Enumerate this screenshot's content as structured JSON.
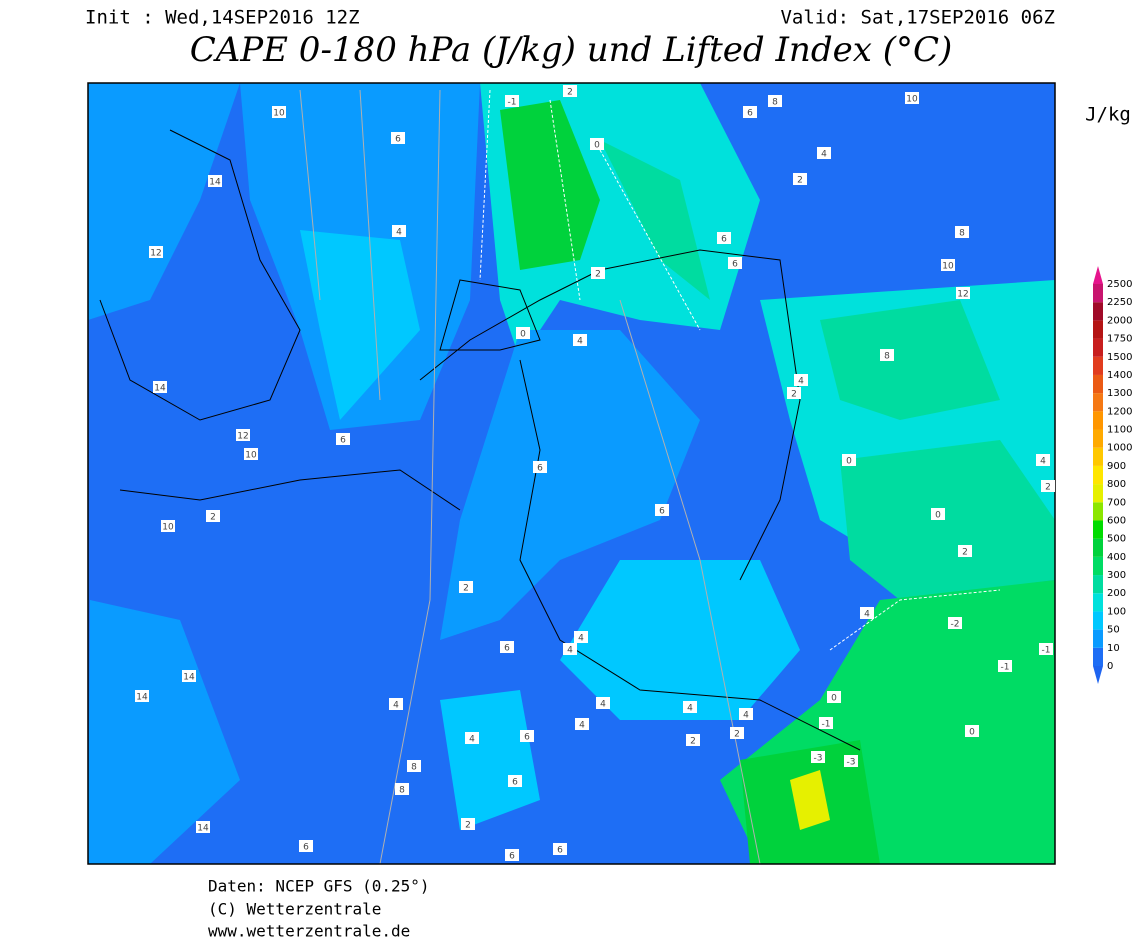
{
  "header": {
    "init": "Init : Wed,14SEP2016 12Z",
    "valid": "Valid: Sat,17SEP2016 06Z",
    "title": "CAPE 0-180 hPa (J/kg) und Lifted Index (°C)"
  },
  "legend": {
    "unit": "J/kg",
    "levels": [
      0,
      10,
      50,
      100,
      200,
      300,
      400,
      500,
      600,
      700,
      800,
      900,
      1000,
      1100,
      1200,
      1300,
      1400,
      1500,
      1750,
      2000,
      2250,
      2500
    ],
    "colors": [
      "#1e6ef5",
      "#0a9bff",
      "#00c8ff",
      "#00e1dc",
      "#00dca0",
      "#00dc64",
      "#00d23c",
      "#00dc00",
      "#8ce600",
      "#e6f000",
      "#ffe600",
      "#ffc800",
      "#ffaa00",
      "#ff9600",
      "#f57814",
      "#eb5a14",
      "#e13c1e",
      "#c81e1e",
      "#b41414",
      "#a00a28",
      "#c8146e"
    ],
    "below_color": "#1e64f0",
    "above_color": "#e6148c"
  },
  "map": {
    "contour_labels": [
      10,
      6,
      -1,
      2,
      6,
      8,
      10,
      0,
      4,
      2,
      14,
      4,
      12,
      6,
      8,
      6,
      2,
      10,
      12,
      0,
      4,
      8,
      4,
      2,
      14,
      12,
      10,
      6,
      0,
      6,
      4,
      2,
      2,
      6,
      0,
      10,
      2,
      2,
      4,
      -2,
      -1,
      -1,
      6,
      4,
      4,
      14,
      14,
      0,
      4,
      4,
      -1,
      4,
      4,
      4,
      4,
      6,
      2,
      2,
      0,
      -3,
      -3,
      8,
      6,
      8,
      14,
      2,
      6,
      6,
      6
    ]
  },
  "footer": {
    "source": "Daten: NCEP GFS (0.25°)",
    "copyright": "(C) Wetterzentrale",
    "url": "www.wetterzentrale.de"
  }
}
